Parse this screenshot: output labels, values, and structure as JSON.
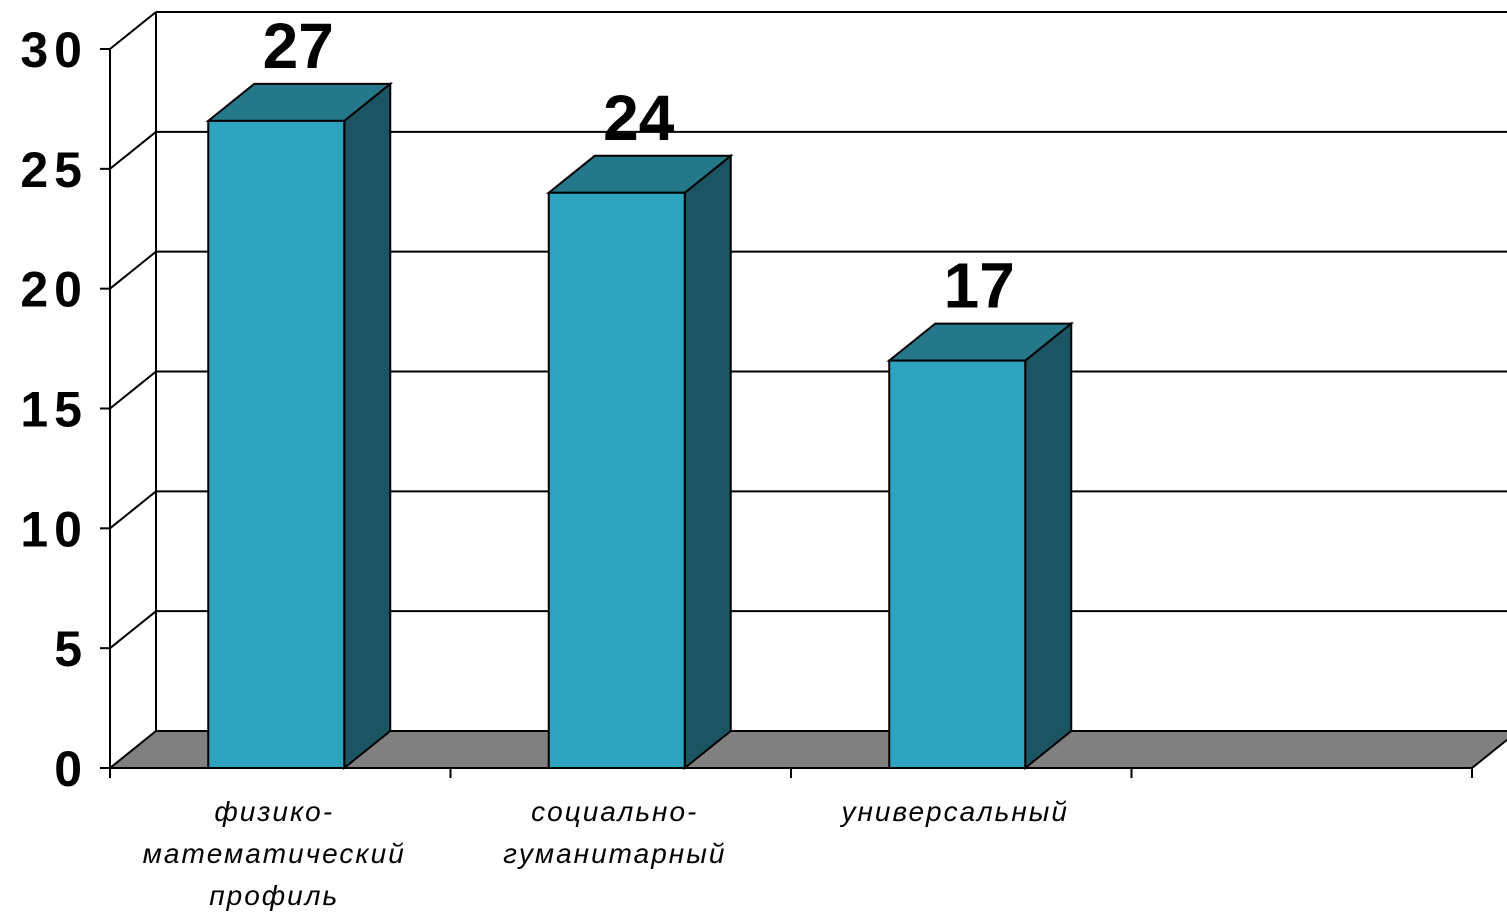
{
  "chart_data": {
    "type": "bar",
    "categories": [
      [
        "физико-",
        "математический",
        "профиль"
      ],
      [
        "социально-",
        "гуманитарный"
      ],
      [
        "универсальный"
      ],
      [
        ""
      ]
    ],
    "values": [
      27,
      24,
      17,
      null
    ],
    "value_labels": [
      "27",
      "24",
      "17",
      ""
    ],
    "ylim": [
      0,
      30
    ],
    "yticks": [
      "0",
      "5",
      "10",
      "15",
      "20",
      "25",
      "30"
    ],
    "ytick_values": [
      0,
      5,
      10,
      15,
      20,
      25,
      30
    ],
    "grid": true,
    "three_d": true,
    "colors": {
      "bar_front": "#2ea3bf",
      "bar_top": "#24788a",
      "bar_side": "#1b5462",
      "floor": "#808080",
      "grid": "#000000"
    }
  }
}
